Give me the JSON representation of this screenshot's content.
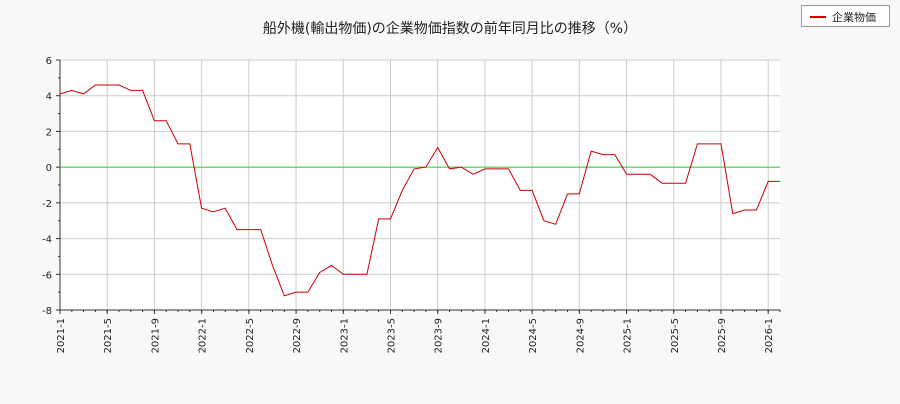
{
  "chart_data": {
    "type": "line",
    "title": "船外機(輸出物価)の企業物価指数の前年同月比の推移（%）",
    "xlabel": "",
    "ylabel": "",
    "ylim": [
      -8,
      6
    ],
    "yticks": [
      "-8",
      "-6",
      "-4",
      "-2",
      "0",
      "2",
      "4",
      "6"
    ],
    "xtick_labels": [
      "2021-1",
      "2021-5",
      "2021-9",
      "2022-1",
      "2022-5",
      "2022-9",
      "2023-1",
      "2023-5",
      "2023-9",
      "2024-1",
      "2024-5",
      "2024-9",
      "2025-1",
      "2025-5",
      "2025-9",
      "2026-1"
    ],
    "x": [
      "2021-1",
      "2021-2",
      "2021-3",
      "2021-4",
      "2021-5",
      "2021-6",
      "2021-7",
      "2021-8",
      "2021-9",
      "2021-10",
      "2021-11",
      "2021-12",
      "2022-1",
      "2022-2",
      "2022-3",
      "2022-4",
      "2022-5",
      "2022-6",
      "2022-7",
      "2022-8",
      "2022-9",
      "2022-10",
      "2022-11",
      "2022-12",
      "2023-1",
      "2023-2",
      "2023-3",
      "2023-4",
      "2023-5",
      "2023-6",
      "2023-7",
      "2023-8",
      "2023-9",
      "2023-10",
      "2023-11",
      "2023-12",
      "2024-1",
      "2024-2",
      "2024-3",
      "2024-4",
      "2024-5",
      "2024-6",
      "2024-7",
      "2024-8",
      "2024-9",
      "2024-10",
      "2024-11",
      "2024-12",
      "2025-1",
      "2025-2",
      "2025-3",
      "2025-4",
      "2025-5",
      "2025-6",
      "2025-7",
      "2025-8",
      "2025-9",
      "2025-10",
      "2025-11",
      "2025-12",
      "2026-1",
      "2026-2"
    ],
    "series": [
      {
        "name": "企業物価",
        "color": "#cc0000",
        "values": [
          4.1,
          4.3,
          4.1,
          4.6,
          4.6,
          4.6,
          4.3,
          4.3,
          2.6,
          2.6,
          1.3,
          1.3,
          -2.3,
          -2.5,
          -2.3,
          -3.5,
          -3.5,
          -3.5,
          -5.5,
          -7.2,
          -7.0,
          -7.0,
          -5.9,
          -5.5,
          -6.0,
          -6.0,
          -6.0,
          -2.9,
          -2.9,
          -1.3,
          -0.1,
          0.0,
          1.1,
          -0.1,
          0.0,
          -0.4,
          -0.1,
          -0.1,
          -0.1,
          -1.3,
          -1.3,
          -3.0,
          -3.2,
          -1.5,
          -1.5,
          0.9,
          0.7,
          0.7,
          -0.4,
          -0.4,
          -0.4,
          -0.9,
          -0.9,
          -0.9,
          1.3,
          1.3,
          1.3,
          -2.6,
          -2.4,
          -2.4,
          -0.8,
          -0.8
        ]
      }
    ],
    "reference_line": {
      "y": 0,
      "color": "#33cc33"
    },
    "grid": true,
    "legend_position": "top-right"
  }
}
